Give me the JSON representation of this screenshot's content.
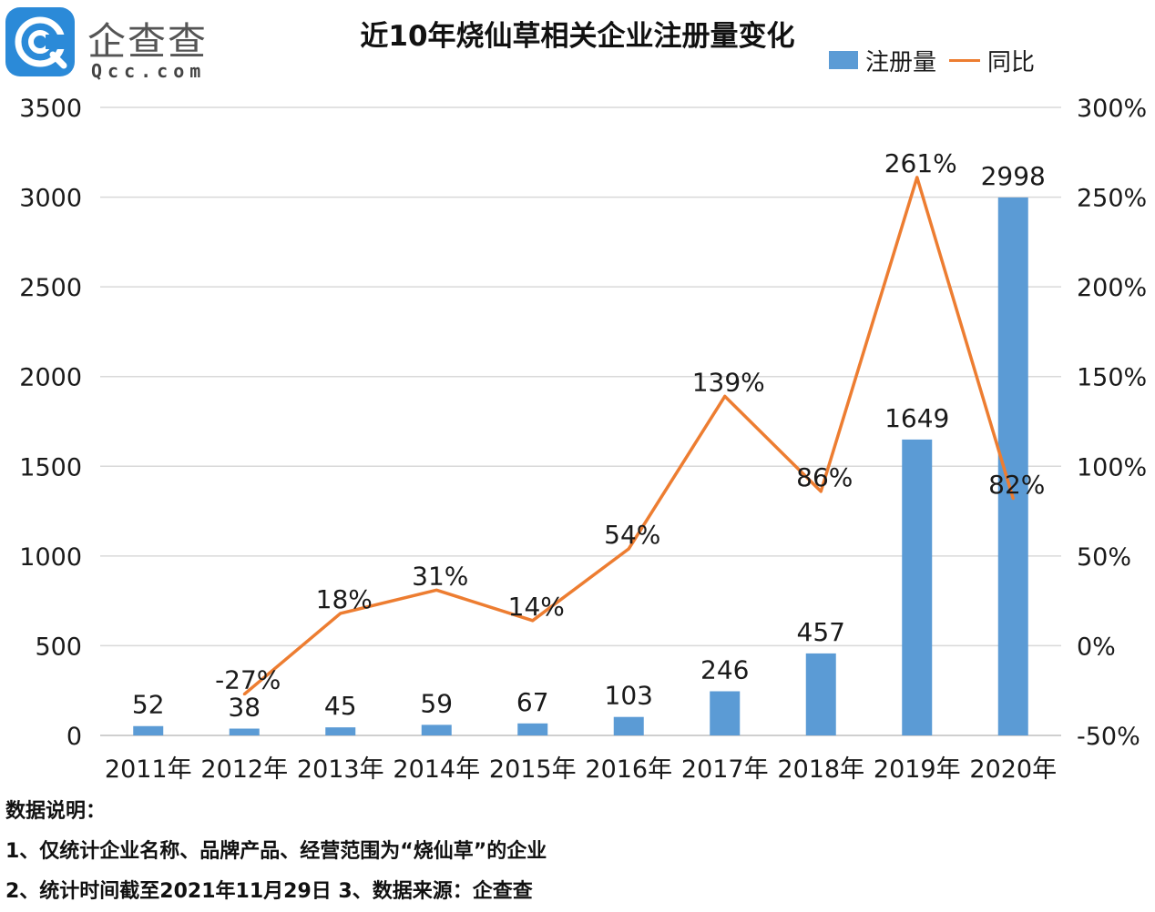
{
  "brand": {
    "name": "企查查",
    "url": "Qcc.com",
    "color": "#2b8ad8"
  },
  "notes": {
    "heading": "数据说明：",
    "line1": "1、仅统计企业名称、品牌产品、经营范围为“烧仙草”的企业",
    "line2": "2、统计时间截至2021年11月29日  3、数据来源：企查查"
  },
  "chart_data": {
    "type": "bar",
    "title": "近10年烧仙草相关企业注册量变化",
    "categories": [
      "2011年",
      "2012年",
      "2013年",
      "2014年",
      "2015年",
      "2016年",
      "2017年",
      "2018年",
      "2019年",
      "2020年"
    ],
    "series": [
      {
        "name": "注册量",
        "type": "bar",
        "axis": "left",
        "color": "#5b9bd5",
        "values": [
          52,
          38,
          45,
          59,
          67,
          103,
          246,
          457,
          1649,
          2998
        ],
        "labels": [
          "52",
          "38",
          "45",
          "59",
          "67",
          "103",
          "246",
          "457",
          "1649",
          "2998"
        ]
      },
      {
        "name": "同比",
        "type": "line",
        "axis": "right",
        "color": "#ed7d31",
        "values": [
          null,
          -27,
          18,
          31,
          14,
          54,
          139,
          86,
          261,
          82
        ],
        "labels": [
          "",
          "-27%",
          "18%",
          "31%",
          "14%",
          "54%",
          "139%",
          "86%",
          "261%",
          "82%"
        ]
      }
    ],
    "y_left": {
      "min": 0,
      "max": 3500,
      "ticks": [
        "0",
        "500",
        "1000",
        "1500",
        "2000",
        "2500",
        "3000",
        "3500"
      ]
    },
    "y_right": {
      "min": -50,
      "max": 300,
      "ticks": [
        "-50%",
        "0%",
        "50%",
        "100%",
        "150%",
        "200%",
        "250%",
        "300%"
      ]
    },
    "grid": true,
    "legend": "top-right"
  }
}
